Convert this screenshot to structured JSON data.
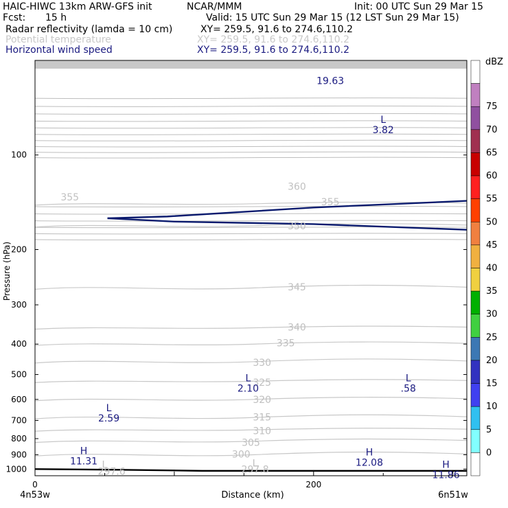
{
  "header": {
    "model": "HAIC-HIWC 13km ARW-GFS init",
    "org": "NCAR/MMM",
    "init": "Init: 00 UTC Sun 29 Mar 15",
    "fcst_label": "Fcst:",
    "fcst_value": "15 h",
    "valid": "Valid: 15 UTC Sun 29 Mar 15 (12 LST Sun 29 Mar 15)",
    "fields": [
      {
        "name": "Radar reflectivity (lamda = 10 cm)",
        "xy": "XY= 259.5, 91.6 to 274.6,110.2"
      },
      {
        "name": "Potential temperature",
        "xy": "XY= 259.5, 91.6 to 274.6,110.2"
      },
      {
        "name": "Horizontal wind speed",
        "xy": "XY= 259.5, 91.6 to 274.6,110.2"
      }
    ]
  },
  "chart_data": {
    "type": "line",
    "ylabel": "Pressure (hPa)",
    "xlabel": "Distance (km)",
    "x_tick_labels": [
      "0",
      "200"
    ],
    "x_ticks": [
      0,
      200
    ],
    "y_tick_labels": [
      "100",
      "200",
      "300",
      "400",
      "500",
      "600",
      "700",
      "800",
      "900",
      "1000"
    ],
    "y_ticks": [
      100,
      200,
      300,
      400,
      500,
      600,
      700,
      800,
      900,
      1000
    ],
    "xlim": [
      0,
      310
    ],
    "ylim": [
      1050,
      50
    ],
    "y_scale": "log",
    "endpoint_left": "4n53w",
    "endpoint_right": "6n51w",
    "theta_labels": [
      {
        "text": "355",
        "x": 25,
        "p": 136
      },
      {
        "text": "360",
        "x": 188,
        "p": 126
      },
      {
        "text": "355",
        "x": 212,
        "p": 141
      },
      {
        "text": "350",
        "x": 188,
        "p": 168
      },
      {
        "text": "345",
        "x": 188,
        "p": 263
      },
      {
        "text": "340",
        "x": 188,
        "p": 353
      },
      {
        "text": "335",
        "x": 180,
        "p": 397
      },
      {
        "text": "330",
        "x": 163,
        "p": 458
      },
      {
        "text": "325",
        "x": 163,
        "p": 530
      },
      {
        "text": "320",
        "x": 163,
        "p": 600
      },
      {
        "text": "315",
        "x": 163,
        "p": 682
      },
      {
        "text": "310",
        "x": 163,
        "p": 755
      },
      {
        "text": "305",
        "x": 155,
        "p": 822
      },
      {
        "text": "300",
        "x": 148,
        "p": 895
      },
      {
        "text": "297.8",
        "x": 158,
        "p": 1000
      },
      {
        "text": "297.6",
        "x": 55,
        "p": 1015
      }
    ],
    "theta_extrema": [
      {
        "kind": "L",
        "value": "297.6",
        "x": 50,
        "p": 990
      },
      {
        "kind": "L",
        "value": "297.8",
        "x": 158,
        "p": 980
      }
    ],
    "wind_extrema": [
      {
        "kind": "L",
        "value": "2.59",
        "x": 53,
        "p": 655
      },
      {
        "kind": "L",
        "value": "2.10",
        "x": 153,
        "p": 525
      },
      {
        "kind": "L",
        "value": ".58",
        "x": 268,
        "p": 525
      },
      {
        "kind": "L",
        "value": "3.82",
        "x": 250,
        "p": 79
      },
      {
        "kind": "H",
        "value": "11.31",
        "x": 35,
        "p": 895
      },
      {
        "kind": "H",
        "value": "12.08",
        "x": 240,
        "p": 905
      },
      {
        "kind": "H",
        "value": "11.86",
        "x": 295,
        "p": 990
      },
      {
        "kind": "",
        "value": "19.63",
        "x": 212,
        "p": 58
      }
    ],
    "tropopause_line": {
      "x": [
        52,
        95,
        200,
        310
      ],
      "p": [
        159,
        157,
        147,
        140
      ]
    },
    "wind_lower_line": {
      "x": [
        52,
        100,
        200,
        310
      ],
      "p": [
        159,
        163,
        166,
        173
      ]
    },
    "terrain": {
      "x": [
        0,
        60,
        120,
        310
      ],
      "p": [
        1000,
        1005,
        1013,
        1013
      ]
    },
    "colorbar": {
      "label": "dBZ",
      "levels": [
        "0",
        "5",
        "10",
        "15",
        "20",
        "25",
        "30",
        "35",
        "40",
        "45",
        "50",
        "55",
        "60",
        "65",
        "70",
        "75"
      ],
      "colors": [
        "#ffffff",
        "#82ffff",
        "#30c0f0",
        "#4040f0",
        "#3232c0",
        "#3c78b4",
        "#40d040",
        "#00b000",
        "#f0d040",
        "#f0b040",
        "#f08040",
        "#ff4000",
        "#ff2020",
        "#c80000",
        "#a03050",
        "#9050a0",
        "#c080c0",
        "#ffffff"
      ]
    }
  }
}
